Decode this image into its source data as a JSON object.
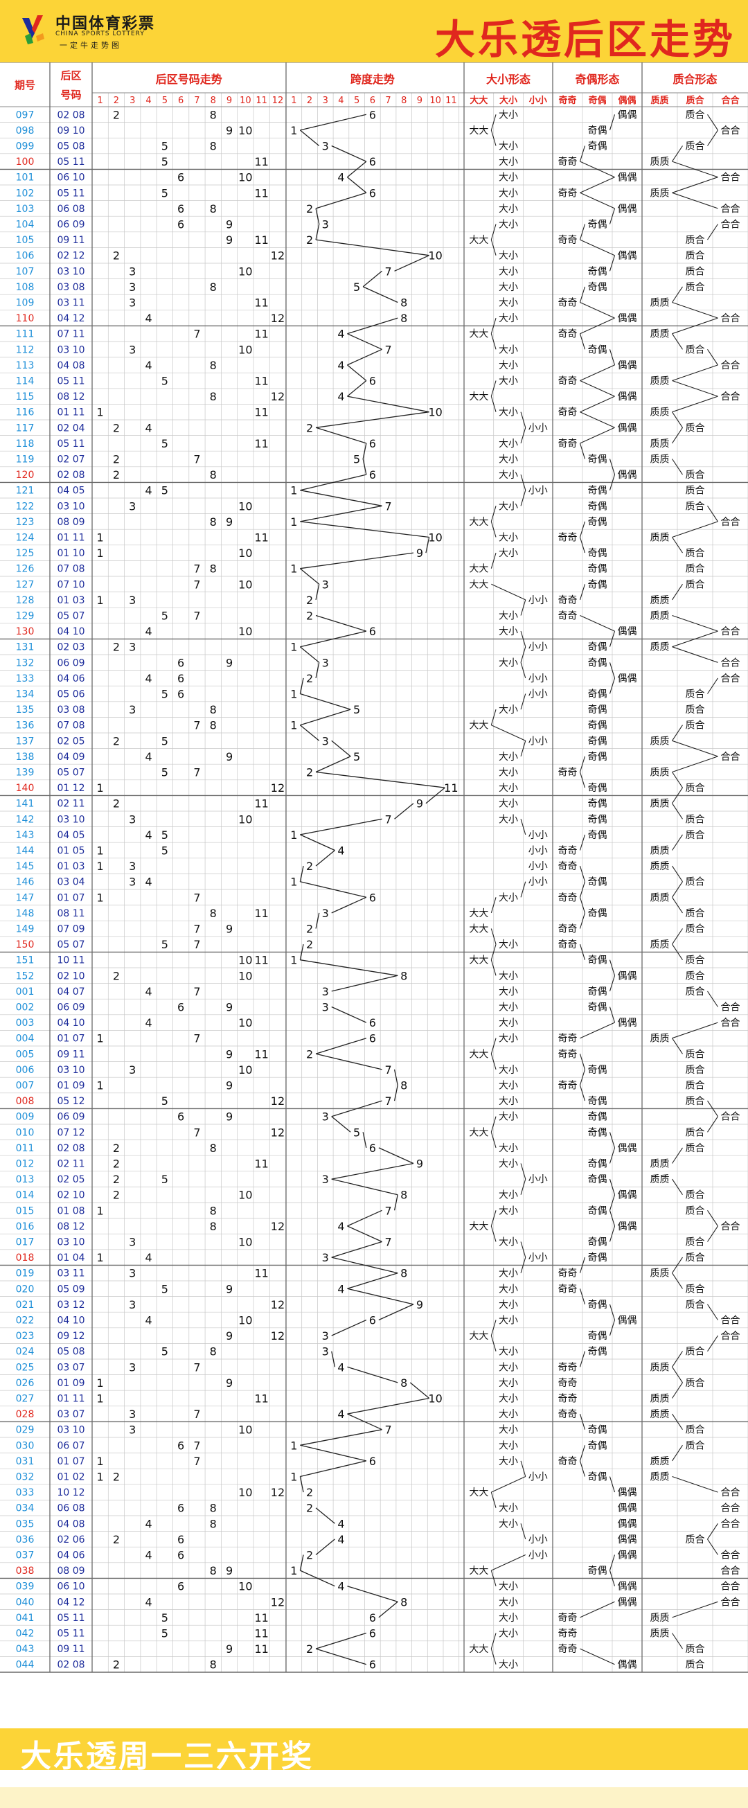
{
  "header": {
    "logo_cn": "中国体育彩票",
    "logo_en": "CHINA SPORTS LOTTERY",
    "logo_sub": "一定牛走势图",
    "title": "大乐透后区走势"
  },
  "footer": {
    "text": "大乐透周一三六开奖"
  },
  "colors": {
    "header_bg": "#fcd437",
    "title_red": "#e0271e",
    "period_blue": "#1e8fd8",
    "period_red": "#e0271e",
    "number_blue": "#1d2c9b",
    "ball_red": "#d8231b",
    "grid": "#c8c8c8"
  },
  "chart_data": {
    "type": "table",
    "columns": {
      "period": "期号",
      "numbers": "后区号码",
      "trend": "后区号码走势",
      "span": "跨度走势",
      "size": "大小形态",
      "parity": "奇偶形态",
      "prime": "质合形态"
    },
    "ball_headers": [
      "1",
      "2",
      "3",
      "4",
      "5",
      "6",
      "7",
      "8",
      "9",
      "10",
      "11",
      "12"
    ],
    "span_headers": [
      "1",
      "2",
      "3",
      "4",
      "5",
      "6",
      "7",
      "8",
      "9",
      "10",
      "11"
    ],
    "size_headers": [
      "大大",
      "大小",
      "小小"
    ],
    "parity_headers": [
      "奇奇",
      "奇偶",
      "偶偶"
    ],
    "prime_headers": [
      "质质",
      "质合",
      "合合"
    ],
    "rows": [
      [
        "097",
        "02 08"
      ],
      [
        "098",
        "09 10"
      ],
      [
        "099",
        "05 08"
      ],
      [
        "100",
        "05 11"
      ],
      [
        "101",
        "06 10"
      ],
      [
        "102",
        "05 11"
      ],
      [
        "103",
        "06 08"
      ],
      [
        "104",
        "06 09"
      ],
      [
        "105",
        "09 11"
      ],
      [
        "106",
        "02 12"
      ],
      [
        "107",
        "03 10"
      ],
      [
        "108",
        "03 08"
      ],
      [
        "109",
        "03 11"
      ],
      [
        "110",
        "04 12"
      ],
      [
        "111",
        "07 11"
      ],
      [
        "112",
        "03 10"
      ],
      [
        "113",
        "04 08"
      ],
      [
        "114",
        "05 11"
      ],
      [
        "115",
        "08 12"
      ],
      [
        "116",
        "01 11"
      ],
      [
        "117",
        "02 04"
      ],
      [
        "118",
        "05 11"
      ],
      [
        "119",
        "02 07"
      ],
      [
        "120",
        "02 08"
      ],
      [
        "121",
        "04 05"
      ],
      [
        "122",
        "03 10"
      ],
      [
        "123",
        "08 09"
      ],
      [
        "124",
        "01 11"
      ],
      [
        "125",
        "01 10"
      ],
      [
        "126",
        "07 08"
      ],
      [
        "127",
        "07 10"
      ],
      [
        "128",
        "01 03"
      ],
      [
        "129",
        "05 07"
      ],
      [
        "130",
        "04 10"
      ],
      [
        "131",
        "02 03"
      ],
      [
        "132",
        "06 09"
      ],
      [
        "133",
        "04 06"
      ],
      [
        "134",
        "05 06"
      ],
      [
        "135",
        "03 08"
      ],
      [
        "136",
        "07 08"
      ],
      [
        "137",
        "02 05"
      ],
      [
        "138",
        "04 09"
      ],
      [
        "139",
        "05 07"
      ],
      [
        "140",
        "01 12"
      ],
      [
        "141",
        "02 11"
      ],
      [
        "142",
        "03 10"
      ],
      [
        "143",
        "04 05"
      ],
      [
        "144",
        "01 05"
      ],
      [
        "145",
        "01 03"
      ],
      [
        "146",
        "03 04"
      ],
      [
        "147",
        "01 07"
      ],
      [
        "148",
        "08 11"
      ],
      [
        "149",
        "07 09"
      ],
      [
        "150",
        "05 07"
      ],
      [
        "151",
        "10 11"
      ],
      [
        "152",
        "02 10"
      ],
      [
        "001",
        "04 07"
      ],
      [
        "002",
        "06 09"
      ],
      [
        "003",
        "04 10"
      ],
      [
        "004",
        "01 07"
      ],
      [
        "005",
        "09 11"
      ],
      [
        "006",
        "03 10"
      ],
      [
        "007",
        "01 09"
      ],
      [
        "008",
        "05 12"
      ],
      [
        "009",
        "06 09"
      ],
      [
        "010",
        "07 12"
      ],
      [
        "011",
        "02 08"
      ],
      [
        "012",
        "02 11"
      ],
      [
        "013",
        "02 05"
      ],
      [
        "014",
        "02 10"
      ],
      [
        "015",
        "01 08"
      ],
      [
        "016",
        "08 12"
      ],
      [
        "017",
        "03 10"
      ],
      [
        "018",
        "01 04"
      ],
      [
        "019",
        "03 11"
      ],
      [
        "020",
        "05 09"
      ],
      [
        "021",
        "03 12"
      ],
      [
        "022",
        "04 10"
      ],
      [
        "023",
        "09 12"
      ],
      [
        "024",
        "05 08"
      ],
      [
        "025",
        "03 07"
      ],
      [
        "026",
        "01 09"
      ],
      [
        "027",
        "01 11"
      ],
      [
        "028",
        "03 07"
      ],
      [
        "029",
        "03 10"
      ],
      [
        "030",
        "06 07"
      ],
      [
        "031",
        "01 07"
      ],
      [
        "032",
        "01 02"
      ],
      [
        "033",
        "10 12"
      ],
      [
        "034",
        "06 08"
      ],
      [
        "035",
        "04 08"
      ],
      [
        "036",
        "02 06"
      ],
      [
        "037",
        "04 06"
      ],
      [
        "038",
        "08 09"
      ],
      [
        "039",
        "06 10"
      ],
      [
        "040",
        "04 12"
      ],
      [
        "041",
        "05 11"
      ],
      [
        "042",
        "05 11"
      ],
      [
        "043",
        "09 11"
      ],
      [
        "044",
        "02 08"
      ]
    ],
    "red_periods": [
      "100",
      "110",
      "120",
      "130",
      "140",
      "150",
      "008",
      "018",
      "028",
      "038"
    ]
  }
}
